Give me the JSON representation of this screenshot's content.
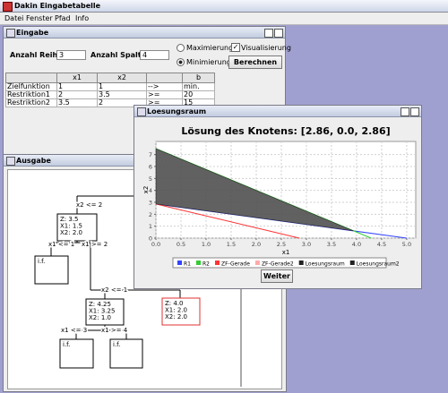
{
  "window": {
    "title": "Dakin Eingabetabelle"
  },
  "menu": [
    "Datei",
    "Fenster",
    "Pfad",
    "Info"
  ],
  "eingabe": {
    "title": "Eingabe",
    "rows_label": "Anzahl Reihen:",
    "rows": 3,
    "cols_label": "Anzahl Spalten:",
    "cols": 4,
    "max": "Maximierung",
    "min": "Minimierung",
    "visual": "Visualisierung",
    "button": "Berechnen",
    "table": {
      "header": [
        "x1",
        "x2",
        "b"
      ],
      "rows": [
        [
          "Zielfunktion",
          1,
          1,
          "-->",
          "min."
        ],
        [
          "Restriktion1",
          2,
          3.5,
          ">=",
          20
        ],
        [
          "Restriktion2",
          3.5,
          2,
          ">=",
          15
        ]
      ]
    }
  },
  "ausgabe": {
    "title": "Ausgabe",
    "edges": [
      "x2 <= 2",
      "x1 <= 1",
      "x1 >= 2",
      "x2 <= 1",
      "x1 <= 3",
      "x1 >= 4"
    ],
    "nodes": [
      {
        "lines": [
          "Z: 3.5",
          "X1: 1.5",
          "X2: 2.0"
        ]
      },
      {
        "lines": [
          "i.f."
        ]
      },
      {
        "lines": [
          "Z: 4.25",
          "X1: 3.25",
          "X2: 1.0"
        ]
      },
      {
        "lines": [
          "Z: 4.0",
          "X1: 2.0",
          "X2: 2.0"
        ],
        "color": "#e03030"
      },
      {
        "lines": [
          "i.f."
        ]
      },
      {
        "lines": [
          "i.f."
        ]
      }
    ]
  },
  "loesungsraum": {
    "title": "Loesungsraum",
    "button": "Weiter"
  },
  "chart_data": {
    "type": "line",
    "title": "Lösung des Knotens: [2.86, 0.0, 2.86]",
    "x_label": "x1",
    "y_label": "x2",
    "xlim": [
      0,
      5.18
    ],
    "ylim": [
      0,
      8.1
    ],
    "xticks": [
      {
        "value": 0,
        "label": "0.0"
      },
      {
        "value": 0.5,
        "label": "0.5"
      },
      {
        "value": 1,
        "label": "1.0"
      },
      {
        "value": 1.5,
        "label": "1.5"
      },
      {
        "value": 2,
        "label": "2.0"
      },
      {
        "value": 2.5,
        "label": "2.5"
      },
      {
        "value": 3,
        "label": "3.0"
      },
      {
        "value": 3.5,
        "label": "3.5"
      },
      {
        "value": 4,
        "label": "4.0"
      },
      {
        "value": 4.5,
        "label": "4.5"
      },
      {
        "value": 5,
        "label": "5.0"
      }
    ],
    "yticks": [
      0,
      1,
      2,
      3,
      4,
      5,
      6,
      7
    ],
    "grid": true,
    "series": [
      {
        "name": "R1",
        "color": "#3344ff",
        "x": [
          0,
          5.0
        ],
        "y": [
          2.86,
          0
        ]
      },
      {
        "name": "R2",
        "color": "#33cc33",
        "x": [
          0,
          4.29
        ],
        "y": [
          7.5,
          0
        ]
      },
      {
        "name": "ZF-Gerade",
        "color": "#ff3333",
        "x": [
          0,
          2.86
        ],
        "y": [
          2.86,
          0
        ]
      },
      {
        "name": "ZF-Gerade2",
        "color": "#ffaaaa",
        "x": [],
        "y": []
      },
      {
        "name": "Loesungsraum",
        "color": "#222222",
        "fill": "#505050",
        "x": [
          0,
          3.94,
          0
        ],
        "y": [
          7.5,
          0.61,
          2.86
        ]
      },
      {
        "name": "Loesungsraum2",
        "color": "#222222",
        "x": [],
        "y": []
      }
    ]
  }
}
